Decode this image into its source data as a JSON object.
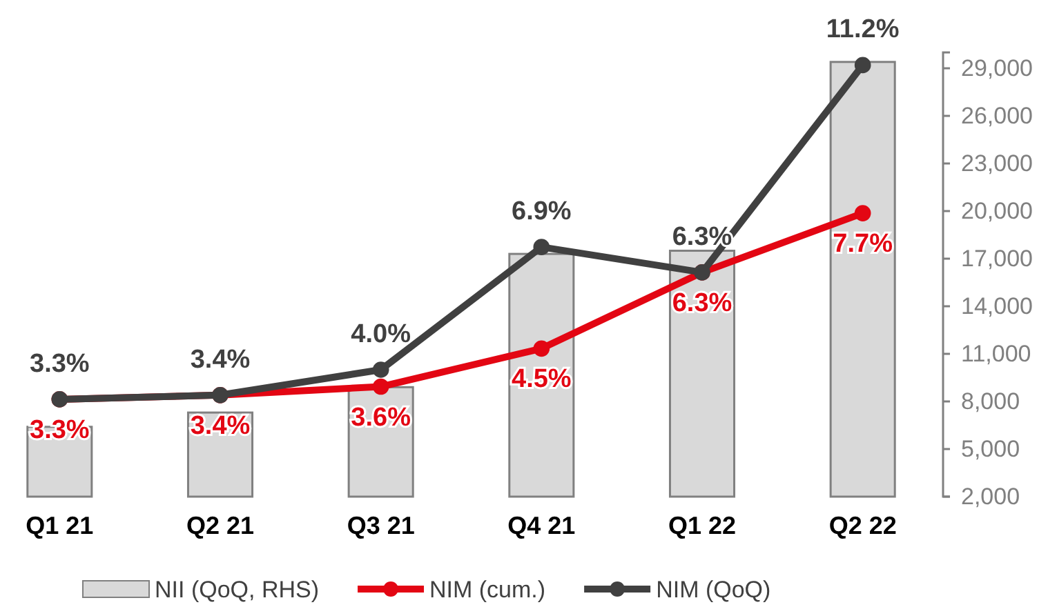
{
  "chart_data": {
    "type": "bar",
    "categories": [
      "Q1 21",
      "Q2 21",
      "Q3 21",
      "Q4 21",
      "Q1 22",
      "Q2 22"
    ],
    "series": [
      {
        "name": "NII (QoQ, RHS)",
        "axis": "y2",
        "color": "#d9d9d9",
        "values": [
          6400,
          7300,
          8900,
          17300,
          17500,
          29400
        ]
      },
      {
        "name": "NIM (cum.)",
        "type": "line",
        "axis": "y",
        "color": "#e30613",
        "values": [
          3.3,
          3.4,
          3.6,
          4.5,
          6.3,
          7.7
        ],
        "value_labels": [
          "3.3%",
          "3.4%",
          "3.6%",
          "4.5%",
          "6.3%",
          "7.7%"
        ]
      },
      {
        "name": "NIM (QoQ)",
        "type": "line",
        "axis": "y",
        "color": "#404040",
        "values": [
          3.3,
          3.4,
          4.0,
          6.9,
          6.3,
          11.2
        ],
        "value_labels": [
          "3.3%",
          "3.4%",
          "4.0%",
          "6.9%",
          "6.3%",
          "11.2%"
        ]
      }
    ],
    "ylim": [
      1.0,
      11.5
    ],
    "y2lim": [
      2000,
      30000
    ],
    "y2ticks": [
      {
        "value": 2000,
        "label": "2,000"
      },
      {
        "value": 5000,
        "label": "5,000"
      },
      {
        "value": 8000,
        "label": "8,000"
      },
      {
        "value": 11000,
        "label": "11,000"
      },
      {
        "value": 14000,
        "label": "14,000"
      },
      {
        "value": 17000,
        "label": "17,000"
      },
      {
        "value": 20000,
        "label": "20,000"
      },
      {
        "value": 23000,
        "label": "23,000"
      },
      {
        "value": 26000,
        "label": "26,000"
      },
      {
        "value": 29000,
        "label": "29,000"
      }
    ],
    "marker": "circle",
    "legend": "bottom",
    "grid": false
  }
}
